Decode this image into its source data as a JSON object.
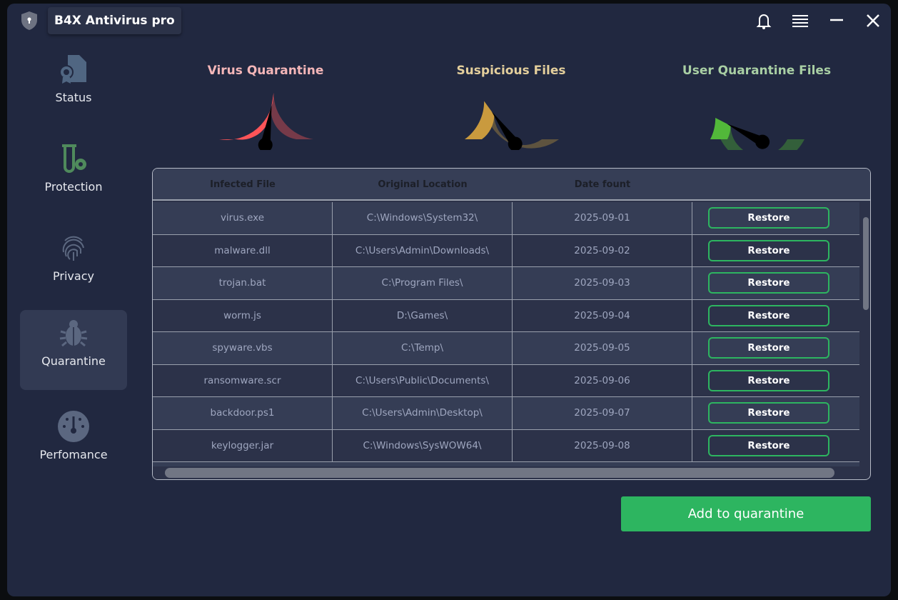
{
  "app": {
    "title": "B4X Antivirus pro"
  },
  "sidebar": {
    "items": [
      {
        "label": "Status",
        "icon": "certificate-file-icon"
      },
      {
        "label": "Protection",
        "icon": "test-tube-gear-icon"
      },
      {
        "label": "Privacy",
        "icon": "fingerprint-icon"
      },
      {
        "label": "Quarantine",
        "icon": "bug-icon",
        "selected": true
      },
      {
        "label": "Perfomance",
        "icon": "speedometer-icon"
      }
    ]
  },
  "gauges": [
    {
      "title": "Virus Quarantine",
      "level": 0.55,
      "title_color": "#f4b6b8",
      "fill_color": "#fe5458",
      "track_color": "#763a49"
    },
    {
      "title": "Suspicious Files",
      "level": 0.3,
      "title_color": "#e4cf9c",
      "fill_color": "#c99a3e",
      "track_color": "#5e533f"
    },
    {
      "title": "User Quarantine Files",
      "level": 0.15,
      "title_color": "#a9cfa4",
      "fill_color": "#52b83a",
      "track_color": "#335f3a"
    }
  ],
  "table": {
    "headers": [
      "Infected File",
      "Original Location",
      "Date fount"
    ],
    "rows": [
      [
        "virus.exe",
        "C:\\Windows\\System32\\",
        "2025-09-01"
      ],
      [
        "malware.dll",
        "C:\\Users\\Admin\\Downloads\\",
        "2025-09-02"
      ],
      [
        "trojan.bat",
        "C:\\Program Files\\",
        "2025-09-03"
      ],
      [
        "worm.js",
        "D:\\Games\\",
        "2025-09-04"
      ],
      [
        "spyware.vbs",
        "C:\\Temp\\",
        "2025-09-05"
      ],
      [
        "ransomware.scr",
        "C:\\Users\\Public\\Documents\\",
        "2025-09-06"
      ],
      [
        "backdoor.ps1",
        "C:\\Users\\Admin\\Desktop\\",
        "2025-09-07"
      ],
      [
        "keylogger.jar",
        "C:\\Windows\\SysWOW64\\",
        "2025-09-08"
      ]
    ],
    "restore_label": "Restore"
  },
  "add_button": "Add to quarantine"
}
